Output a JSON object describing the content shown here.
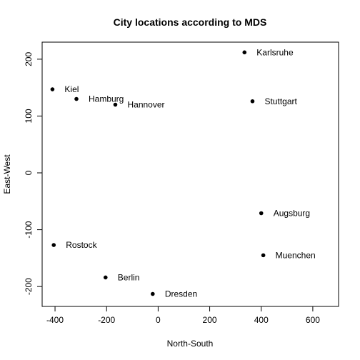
{
  "chart_data": {
    "type": "scatter",
    "title": "City locations according to MDS",
    "xlabel": "North-South",
    "ylabel": "East-West",
    "xlim": [
      -450,
      700
    ],
    "ylim": [
      -235,
      230
    ],
    "xticks": [
      -400,
      -200,
      0,
      200,
      400,
      600
    ],
    "yticks": [
      -200,
      -100,
      0,
      100,
      200
    ],
    "grid": false,
    "points": [
      {
        "label": "Karlsruhe",
        "x": 335,
        "y": 212
      },
      {
        "label": "Kiel",
        "x": -410,
        "y": 147
      },
      {
        "label": "Hamburg",
        "x": -317,
        "y": 130
      },
      {
        "label": "Hannover",
        "x": -166,
        "y": 120
      },
      {
        "label": "Stuttgart",
        "x": 366,
        "y": 126
      },
      {
        "label": "Augsburg",
        "x": 400,
        "y": -71
      },
      {
        "label": "Rostock",
        "x": -405,
        "y": -127
      },
      {
        "label": "Muenchen",
        "x": 408,
        "y": -145
      },
      {
        "label": "Berlin",
        "x": -204,
        "y": -184
      },
      {
        "label": "Dresden",
        "x": -21,
        "y": -213
      }
    ]
  }
}
